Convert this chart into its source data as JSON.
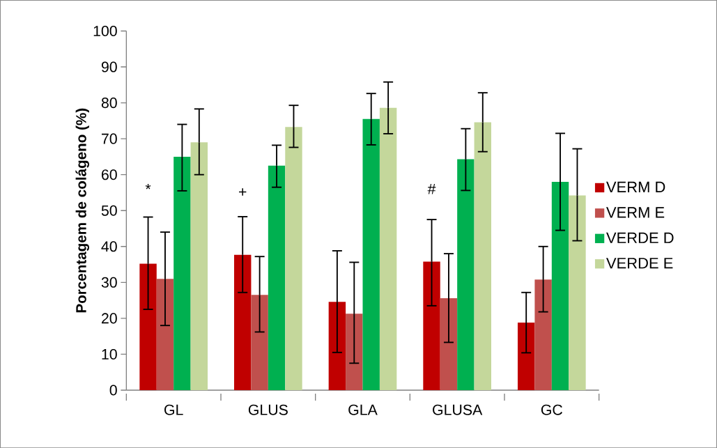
{
  "chart_data": {
    "type": "bar",
    "ylabel": "Porcentagem de colágeno  (%)",
    "categories": [
      "GL",
      "GLUS",
      "GLA",
      "GLUSA",
      "GC"
    ],
    "series": [
      {
        "name": "VERM D",
        "color": "#c00000",
        "values": [
          35.2,
          37.7,
          24.6,
          35.8,
          18.8
        ],
        "errors": [
          [
            22.5,
            48.2
          ],
          [
            27.2,
            48.3
          ],
          [
            10.5,
            38.8
          ],
          [
            23.5,
            47.5
          ],
          [
            10.4,
            27.2
          ]
        ]
      },
      {
        "name": "VERM E",
        "color": "#c0504d",
        "values": [
          31.0,
          26.5,
          21.3,
          25.6,
          30.8
        ],
        "errors": [
          [
            18.0,
            44.0
          ],
          [
            16.2,
            37.2
          ],
          [
            7.5,
            35.6
          ],
          [
            13.3,
            38.0
          ],
          [
            21.8,
            40.0
          ]
        ]
      },
      {
        "name": "VERDE D",
        "color": "#00b050",
        "values": [
          65.0,
          62.5,
          75.5,
          64.3,
          58.0
        ],
        "errors": [
          [
            55.5,
            74.0
          ],
          [
            56.5,
            68.2
          ],
          [
            68.3,
            82.6
          ],
          [
            55.6,
            72.8
          ],
          [
            44.5,
            71.5
          ]
        ]
      },
      {
        "name": "VERDE E",
        "color": "#c4d79b",
        "values": [
          69.0,
          73.3,
          78.6,
          74.6,
          54.2
        ],
        "errors": [
          [
            60.0,
            78.3
          ],
          [
            67.6,
            79.3
          ],
          [
            71.4,
            85.8
          ],
          [
            66.4,
            82.8
          ],
          [
            41.6,
            67.2
          ]
        ]
      }
    ],
    "ylim": [
      0,
      100
    ],
    "yticks": [
      0,
      10,
      20,
      30,
      40,
      50,
      60,
      70,
      80,
      90,
      100
    ],
    "grid": false,
    "legend": "right",
    "annotations": [
      {
        "text": "*",
        "x": "GL",
        "y": 56
      },
      {
        "text": "+",
        "x": "GLUS",
        "y": 55
      },
      {
        "text": "#",
        "x": "GLUSA",
        "y": 56
      }
    ]
  }
}
